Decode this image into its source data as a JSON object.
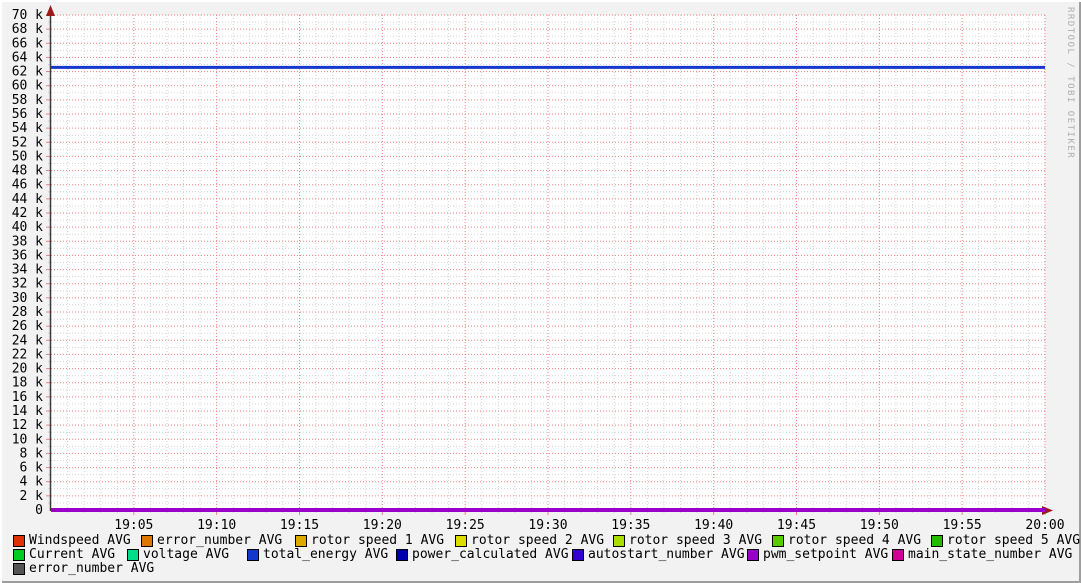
{
  "watermark": "RRDTOOL / TOBI OETIKER",
  "chart_data": {
    "type": "line",
    "title": "",
    "xlabel": "",
    "ylabel": "",
    "x_start": "19:00",
    "x_end": "20:00",
    "x_major_step_minutes": 5,
    "x_minor_step_minutes": 1,
    "x_tick_labels": [
      "19:05",
      "19:10",
      "19:15",
      "19:20",
      "19:25",
      "19:30",
      "19:35",
      "19:40",
      "19:45",
      "19:50",
      "19:55",
      "20:00"
    ],
    "ylim": [
      0,
      70000
    ],
    "y_major_step": 2000,
    "y_minor_step": 1000,
    "y_tick_labels": [
      "0",
      "2 k",
      "4 k",
      "6 k",
      "8 k",
      "10 k",
      "12 k",
      "14 k",
      "16 k",
      "18 k",
      "20 k",
      "22 k",
      "24 k",
      "26 k",
      "28 k",
      "30 k",
      "32 k",
      "34 k",
      "36 k",
      "38 k",
      "40 k",
      "42 k",
      "44 k",
      "46 k",
      "48 k",
      "50 k",
      "52 k",
      "54 k",
      "56 k",
      "58 k",
      "60 k",
      "62 k",
      "64 k",
      "66 k",
      "68 k",
      "70 k"
    ],
    "grid": {
      "style": "dotted",
      "major_color": "#ef8181",
      "minor_color": "#d5d5d5"
    },
    "axis_color": "#3a3a3a",
    "arrow_color": "#9b1b1b",
    "canvas_color": "#ffffff",
    "background_color": "#f2f2f2",
    "baseline_overlap_color": "#9900cc",
    "legend_position": "bottom",
    "series": [
      {
        "name": "windspeed",
        "legend": "Windspeed AVG",
        "color": "#e03008",
        "value": 0
      },
      {
        "name": "error_number",
        "legend": "error_number AVG",
        "color": "#dd7700",
        "value": 0
      },
      {
        "name": "rotor_speed_1",
        "legend": "rotor speed 1 AVG",
        "color": "#ddaa00",
        "value": 0
      },
      {
        "name": "rotor_speed_2",
        "legend": "rotor speed 2 AVG",
        "color": "#dddd00",
        "value": 0
      },
      {
        "name": "rotor_speed_3",
        "legend": "rotor speed 3 AVG",
        "color": "#aadd00",
        "value": 0
      },
      {
        "name": "rotor_speed_4",
        "legend": "rotor speed 4 AVG",
        "color": "#55cc00",
        "value": 0
      },
      {
        "name": "rotor_speed_5",
        "legend": "rotor speed 5 AVG",
        "color": "#22bb00",
        "value": 0
      },
      {
        "name": "current",
        "legend": "Current AVG",
        "color": "#00cc22",
        "value": 0
      },
      {
        "name": "voltage",
        "legend": "voltage AVG",
        "color": "#00dd88",
        "value": 0
      },
      {
        "name": "total_energy",
        "legend": "total_energy AVG",
        "color": "#1437cc",
        "value": 62600
      },
      {
        "name": "power_calculated",
        "legend": "power_calculated AVG",
        "color": "#0000aa",
        "value": 0
      },
      {
        "name": "autostart_number",
        "legend": "autostart_number AVG",
        "color": "#3300cc",
        "value": 0
      },
      {
        "name": "pwm_setpoint",
        "legend": "pwm_setpoint AVG",
        "color": "#9900cc",
        "value": 0
      },
      {
        "name": "main_state_number",
        "legend": "main_state_number AVG",
        "color": "#cc0099",
        "value": 0
      },
      {
        "name": "error_number_2",
        "legend": "error_number AVG",
        "color": "#555555",
        "value": 0
      }
    ]
  }
}
